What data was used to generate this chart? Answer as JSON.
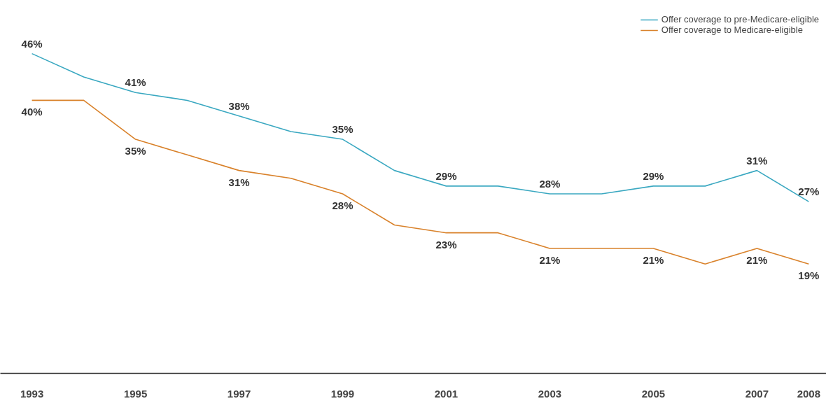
{
  "chart_data": {
    "type": "line",
    "categories": [
      "1993",
      null,
      "1995",
      null,
      "1997",
      null,
      "1999",
      null,
      "2001",
      null,
      "2003",
      null,
      "2005",
      null,
      "2007",
      "2008"
    ],
    "series": [
      {
        "name": "Offer coverage to pre-Medicare-eligible",
        "color": "#3aa8c1",
        "values": [
          46,
          43,
          41,
          40,
          38,
          36,
          35,
          31,
          29,
          29,
          28,
          28,
          29,
          29,
          31,
          27
        ],
        "value_labels": [
          "46%",
          null,
          "41%",
          null,
          "38%",
          null,
          "35%",
          null,
          "29%",
          null,
          "28%",
          null,
          "29%",
          null,
          "31%",
          "27%"
        ]
      },
      {
        "name": "Offer coverage to Medicare-eligible",
        "color": "#d9822b",
        "values": [
          40,
          40,
          35,
          33,
          31,
          30,
          28,
          24,
          23,
          23,
          21,
          21,
          21,
          19,
          21,
          19
        ],
        "value_labels": [
          "40%",
          null,
          "35%",
          null,
          "31%",
          null,
          "28%",
          null,
          "23%",
          null,
          "21%",
          null,
          "21%",
          null,
          "21%",
          "19%"
        ]
      }
    ],
    "tick_labels": "x",
    "grid": false,
    "legend": "top right",
    "marker": "none",
    "line_style": "solid"
  }
}
